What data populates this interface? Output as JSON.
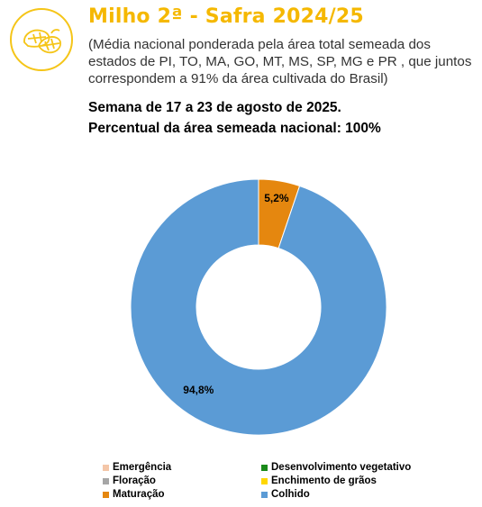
{
  "header": {
    "title": "Milho 2ª - Safra 2024/25",
    "subtitle": "(Média nacional ponderada pela área total semeada dos estados de PI, TO, MA, GO, MT, MS, SP, MG e PR , que juntos correspondem a 91% da área cultivada do Brasil)",
    "week": "Semana de 17 a 23 de agosto de 2025.",
    "percent_area": "Percentual da área semeada nacional: 100%"
  },
  "colors": {
    "title": "#f5b800",
    "logo": "#f5c518"
  },
  "chart_data": {
    "type": "pie",
    "style": "donut",
    "title": "",
    "slices": [
      {
        "label": "Emergência",
        "value": 0,
        "color": "#f4c6a8"
      },
      {
        "label": "Desenvolvimento vegetativo",
        "value": 0,
        "color": "#1a8a1a"
      },
      {
        "label": "Floração",
        "value": 0,
        "color": "#a6a6a6"
      },
      {
        "label": "Enchimento de grãos",
        "value": 0,
        "color": "#ffd700"
      },
      {
        "label": "Maturação",
        "value": 5.2,
        "color": "#e5870f"
      },
      {
        "label": "Colhido",
        "value": 94.8,
        "color": "#5b9bd5"
      }
    ],
    "data_labels": [
      "5,2%",
      "94,8%"
    ],
    "legend_position": "bottom"
  }
}
